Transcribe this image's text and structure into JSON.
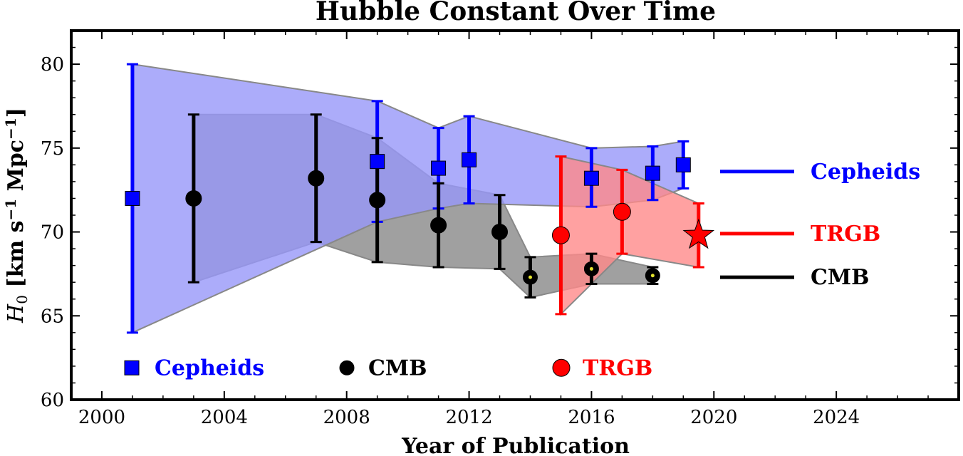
{
  "chart_data": {
    "type": "scatter",
    "title": "Hubble Constant Over Time",
    "xlabel": "Year of Publication",
    "ylabel": "H0 [km s-1 Mpc-1]",
    "xlim": [
      1999,
      2028
    ],
    "ylim": [
      60,
      82
    ],
    "xticks": [
      2000,
      2004,
      2008,
      2012,
      2016,
      2020,
      2024
    ],
    "yticks": [
      60,
      65,
      70,
      75,
      80
    ],
    "grid": false,
    "colors": {
      "cepheids": "#0000ff",
      "cmb": "#000000",
      "trgb": "#ff0000",
      "cepheids_band": "#9797f9",
      "cmb_band": "#808080",
      "trgb_band": "#ff8a8a",
      "planck_dot": "#e5e52e"
    },
    "series": [
      {
        "name": "Cepheids",
        "marker": "square",
        "color": "#0000ff",
        "points": [
          {
            "x": 2001,
            "y": 72.0,
            "ylo": 64.0,
            "yhi": 80.0
          },
          {
            "x": 2009,
            "y": 74.2,
            "ylo": 70.6,
            "yhi": 77.8
          },
          {
            "x": 2011,
            "y": 73.8,
            "ylo": 71.4,
            "yhi": 76.2
          },
          {
            "x": 2012,
            "y": 74.3,
            "ylo": 71.7,
            "yhi": 76.9
          },
          {
            "x": 2016,
            "y": 73.2,
            "ylo": 71.5,
            "yhi": 75.0
          },
          {
            "x": 2018,
            "y": 73.5,
            "ylo": 71.9,
            "yhi": 75.1
          },
          {
            "x": 2019,
            "y": 74.0,
            "ylo": 72.6,
            "yhi": 75.4
          }
        ]
      },
      {
        "name": "CMB",
        "marker": "circle",
        "color": "#000000",
        "points": [
          {
            "x": 2003,
            "y": 72.0,
            "ylo": 67.0,
            "yhi": 77.0
          },
          {
            "x": 2007,
            "y": 73.2,
            "ylo": 69.4,
            "yhi": 77.0
          },
          {
            "x": 2009,
            "y": 71.9,
            "ylo": 68.2,
            "yhi": 75.6
          },
          {
            "x": 2011,
            "y": 70.4,
            "ylo": 67.9,
            "yhi": 72.9
          },
          {
            "x": 2013,
            "y": 70.0,
            "ylo": 67.8,
            "yhi": 72.2
          },
          {
            "x": 2014,
            "y": 67.3,
            "ylo": 66.1,
            "yhi": 68.5,
            "dot": true
          },
          {
            "x": 2016,
            "y": 67.8,
            "ylo": 66.9,
            "yhi": 68.7,
            "dot": true
          },
          {
            "x": 2018,
            "y": 67.4,
            "ylo": 66.9,
            "yhi": 67.9,
            "dot": true
          }
        ]
      },
      {
        "name": "TRGB",
        "marker": "circle",
        "color": "#ff0000",
        "points": [
          {
            "x": 2015,
            "y": 69.8,
            "ylo": 65.1,
            "yhi": 74.5
          },
          {
            "x": 2017,
            "y": 71.2,
            "ylo": 68.7,
            "yhi": 73.7
          },
          {
            "x": 2019.5,
            "y": 69.8,
            "ylo": 67.9,
            "yhi": 71.7,
            "star": true
          }
        ]
      }
    ],
    "legend_bottom": [
      {
        "label": "Cepheids",
        "marker": "square",
        "color": "#0000ff"
      },
      {
        "label": "CMB",
        "marker": "circle",
        "color": "#000000"
      },
      {
        "label": "TRGB",
        "marker": "circle",
        "color": "#ff0000"
      }
    ],
    "legend_right": [
      {
        "label": "Cepheids",
        "color": "#0000ff",
        "y": 73.6
      },
      {
        "label": "TRGB",
        "color": "#ff0000",
        "y": 69.9
      },
      {
        "label": "CMB",
        "color": "#000000",
        "y": 67.3
      }
    ]
  }
}
